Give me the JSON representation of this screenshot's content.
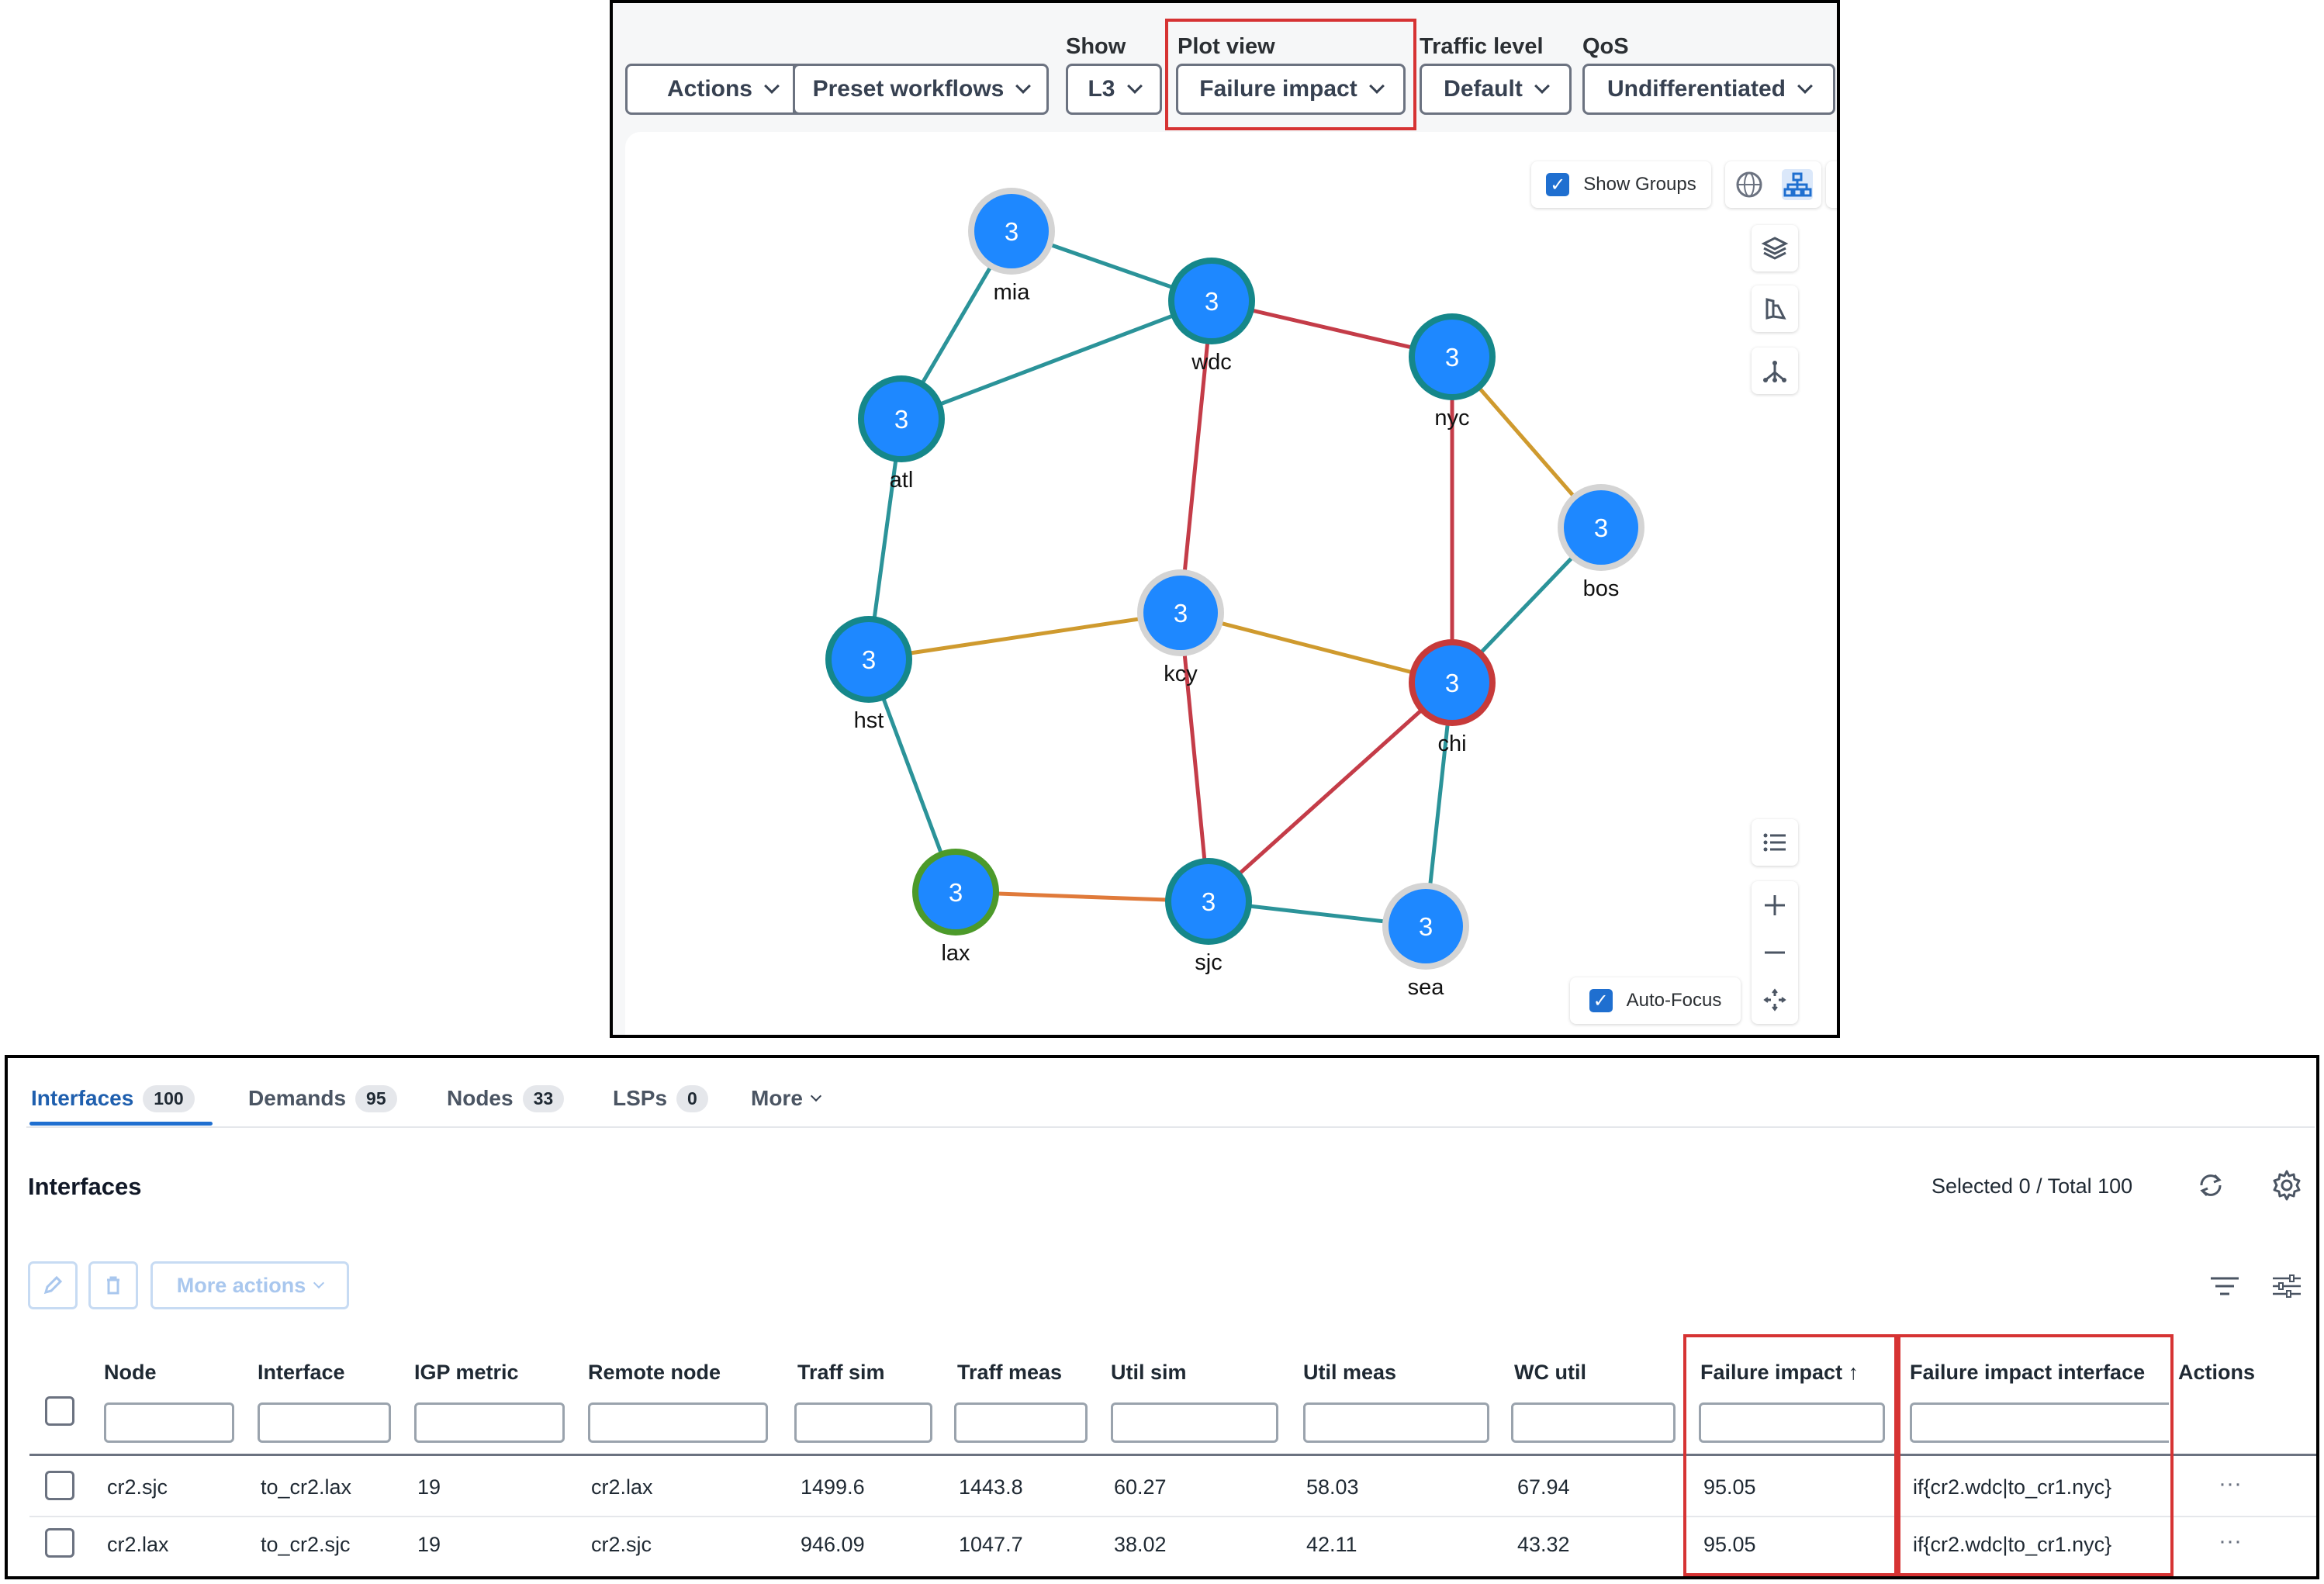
{
  "toolbar": {
    "actions_label": "Actions",
    "preset_label": "Preset workflows",
    "show": {
      "label": "Show",
      "value": "L3"
    },
    "plot_view": {
      "label": "Plot view",
      "value": "Failure impact"
    },
    "traffic_level": {
      "label": "Traffic level",
      "value": "Default"
    },
    "qos": {
      "label": "QoS",
      "value": "Undifferentiated"
    }
  },
  "map": {
    "show_groups_label": "Show Groups",
    "auto_focus_label": "Auto-Focus",
    "nodes": [
      {
        "id": "mia",
        "label": "mia",
        "count": "3",
        "ring": "#d4d4d4"
      },
      {
        "id": "wdc",
        "label": "wdc",
        "count": "3",
        "ring": "#15878a"
      },
      {
        "id": "nyc",
        "label": "nyc",
        "count": "3",
        "ring": "#15878a"
      },
      {
        "id": "atl",
        "label": "atl",
        "count": "3",
        "ring": "#15878a"
      },
      {
        "id": "bos",
        "label": "bos",
        "count": "3",
        "ring": "#d4d4d4"
      },
      {
        "id": "kcy",
        "label": "kcy",
        "count": "3",
        "ring": "#d4d4d4"
      },
      {
        "id": "hst",
        "label": "hst",
        "count": "3",
        "ring": "#15878a"
      },
      {
        "id": "chi",
        "label": "chi",
        "count": "3",
        "ring": "#c73a3a"
      },
      {
        "id": "lax",
        "label": "lax",
        "count": "3",
        "ring": "#4c9a2a"
      },
      {
        "id": "sjc",
        "label": "sjc",
        "count": "3",
        "ring": "#15878a"
      },
      {
        "id": "sea",
        "label": "sea",
        "count": "3",
        "ring": "#d4d4d4"
      }
    ],
    "links": [
      {
        "from": "mia",
        "to": "wdc",
        "color": "#2b9399"
      },
      {
        "from": "mia",
        "to": "atl",
        "color": "#2b9399"
      },
      {
        "from": "atl",
        "to": "wdc",
        "color": "#2b9399"
      },
      {
        "from": "wdc",
        "to": "nyc",
        "color": "#c43c48"
      },
      {
        "from": "wdc",
        "to": "kcy",
        "color": "#c43c48"
      },
      {
        "from": "nyc",
        "to": "bos",
        "color": "#cf9a2e"
      },
      {
        "from": "nyc",
        "to": "chi",
        "color": "#c43c48"
      },
      {
        "from": "bos",
        "to": "chi",
        "color": "#2b9399"
      },
      {
        "from": "atl",
        "to": "hst",
        "color": "#2b9399"
      },
      {
        "from": "hst",
        "to": "kcy",
        "color": "#cf9a2e"
      },
      {
        "from": "kcy",
        "to": "chi",
        "color": "#cf9a2e"
      },
      {
        "from": "kcy",
        "to": "sjc",
        "color": "#c43c48"
      },
      {
        "from": "hst",
        "to": "lax",
        "color": "#2b9399"
      },
      {
        "from": "lax",
        "to": "sjc",
        "color": "#e07a3a"
      },
      {
        "from": "sjc",
        "to": "chi",
        "color": "#c43c48"
      },
      {
        "from": "sjc",
        "to": "sea",
        "color": "#2b9399"
      },
      {
        "from": "chi",
        "to": "sea",
        "color": "#2b9399"
      }
    ]
  },
  "tabs": [
    {
      "label": "Interfaces",
      "count": "100"
    },
    {
      "label": "Demands",
      "count": "95"
    },
    {
      "label": "Nodes",
      "count": "33"
    },
    {
      "label": "LSPs",
      "count": "0"
    },
    {
      "label": "More",
      "count": ""
    }
  ],
  "section": {
    "title": "Interfaces",
    "selected_text": "Selected 0 / Total 100",
    "more_actions_label": "More actions"
  },
  "table": {
    "columns": [
      "Node",
      "Interface",
      "IGP metric",
      "Remote node",
      "Traff sim",
      "Traff meas",
      "Util sim",
      "Util meas",
      "WC util",
      "Failure impact",
      "Failure impact interface",
      "Actions"
    ],
    "sort_indicator": "↑",
    "rows": [
      [
        "cr2.sjc",
        "to_cr2.lax",
        "19",
        "cr2.lax",
        "1499.6",
        "1443.8",
        "60.27",
        "58.03",
        "67.94",
        "95.05",
        "if{cr2.wdc|to_cr1.nyc}"
      ],
      [
        "cr2.lax",
        "to_cr2.sjc",
        "19",
        "cr2.sjc",
        "946.09",
        "1047.7",
        "38.02",
        "42.11",
        "43.32",
        "95.05",
        "if{cr2.wdc|to_cr1.nyc}"
      ]
    ],
    "row_action_glyph": "···"
  },
  "colors": {
    "accent": "#1f6fd0",
    "node_fill": "#1e88ff",
    "highlight": "#d63333"
  }
}
